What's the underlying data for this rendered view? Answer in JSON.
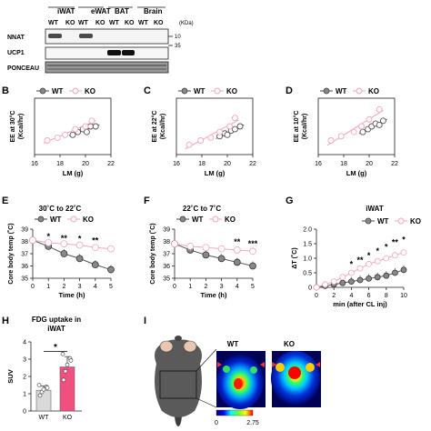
{
  "panel_a": {
    "tissue_headers": [
      "iWAT",
      "eWAT",
      "BAT",
      "Brain"
    ],
    "genotype_labels": [
      "WT",
      "KO",
      "WT",
      "KO",
      "WT",
      "KO",
      "WT",
      "KO"
    ],
    "row_labels": [
      "NNAT",
      "UCP1",
      "PONCEAU"
    ],
    "kda_label": "(KDa)",
    "markers": [
      "10",
      "35"
    ]
  },
  "panel_labels": [
    "B",
    "C",
    "D",
    "E",
    "F",
    "G",
    "H",
    "I"
  ],
  "legend": {
    "wt": "WT",
    "ko": "KO"
  },
  "colors": {
    "wt": "#888888",
    "ko": "#f2a6bf",
    "ko_bar": "#f0507f",
    "wt_bar": "#d9d9d9"
  },
  "chart_data": [
    {
      "panel": "B",
      "type": "scatter",
      "ylabel": "EE at 30°C (Kcal/hr)",
      "xlabel": "LM (g)",
      "xlim": [
        16,
        22
      ],
      "ylim": [
        0.2,
        0.4
      ],
      "xticks": [
        "16",
        "18",
        "20",
        "22"
      ],
      "series": [
        {
          "name": "WT",
          "x": [
            19.0,
            19.4,
            19.8,
            20.1,
            20.4,
            20.8
          ],
          "y": [
            0.27,
            0.28,
            0.29,
            0.28,
            0.3,
            0.3
          ]
        },
        {
          "name": "KO",
          "x": [
            17.0,
            17.8,
            18.4,
            19.2,
            20.0,
            20.5
          ],
          "y": [
            0.25,
            0.26,
            0.27,
            0.29,
            0.3,
            0.32
          ]
        }
      ]
    },
    {
      "panel": "C",
      "type": "scatter",
      "ylabel": "EE at 22°C (Kcal/hr)",
      "xlabel": "LM (g)",
      "xlim": [
        16,
        22
      ],
      "ylim": [
        0.2,
        0.6
      ],
      "xticks": [
        "16",
        "18",
        "20",
        "22"
      ],
      "series": [
        {
          "name": "WT",
          "x": [
            19.4,
            19.8,
            20.0,
            20.3,
            20.6,
            21.0
          ],
          "y": [
            0.33,
            0.35,
            0.34,
            0.37,
            0.38,
            0.4
          ]
        },
        {
          "name": "KO",
          "x": [
            17.0,
            17.9,
            18.7,
            19.4,
            20.2,
            20.6
          ],
          "y": [
            0.27,
            0.3,
            0.32,
            0.36,
            0.4,
            0.46
          ]
        }
      ]
    },
    {
      "panel": "D",
      "type": "scatter",
      "ylabel": "EE at 10°C (Kcal/hr)",
      "xlabel": "LM (g)",
      "xlim": [
        16,
        22
      ],
      "ylim": [
        0.3,
        0.7
      ],
      "xticks": [
        "16",
        "18",
        "20",
        "22"
      ],
      "series": [
        {
          "name": "WT",
          "x": [
            19.5,
            19.9,
            20.2,
            20.5,
            20.8,
            21.1
          ],
          "y": [
            0.46,
            0.48,
            0.5,
            0.52,
            0.51,
            0.54
          ]
        },
        {
          "name": "KO",
          "x": [
            17.0,
            17.8,
            18.8,
            19.4,
            20.0,
            20.8
          ],
          "y": [
            0.4,
            0.43,
            0.46,
            0.5,
            0.55,
            0.62
          ]
        }
      ]
    },
    {
      "panel": "E",
      "type": "line",
      "title": "30˚C to 22˚C",
      "ylabel": "Core body temp (˚C)",
      "xlabel": "Time (h)",
      "x": [
        0,
        1,
        2,
        3,
        4,
        5
      ],
      "ylim": [
        35,
        39
      ],
      "yticks": [
        "35",
        "36",
        "37",
        "38",
        "39"
      ],
      "series": [
        {
          "name": "WT",
          "values": [
            38.1,
            37.6,
            37.0,
            36.6,
            36.1,
            35.7
          ]
        },
        {
          "name": "KO",
          "values": [
            38.1,
            37.9,
            37.8,
            37.7,
            37.5,
            37.4
          ]
        }
      ],
      "annotations": [
        "*",
        "**",
        "*",
        "**"
      ]
    },
    {
      "panel": "F",
      "type": "line",
      "title": "22˚C to 7˚C",
      "ylabel": "Core body temp (˚C)",
      "xlabel": "Time (h)",
      "x": [
        0,
        1,
        2,
        3,
        4,
        5
      ],
      "ylim": [
        35,
        39
      ],
      "yticks": [
        "35",
        "36",
        "37",
        "38",
        "39"
      ],
      "series": [
        {
          "name": "WT",
          "values": [
            37.8,
            37.3,
            36.9,
            36.6,
            36.3,
            36.0
          ]
        },
        {
          "name": "KO",
          "values": [
            37.8,
            37.6,
            37.5,
            37.4,
            37.3,
            37.2
          ]
        }
      ],
      "annotations": [
        "**",
        "***"
      ]
    },
    {
      "panel": "G",
      "type": "line",
      "title": "iWAT",
      "ylabel": "ΔT (˚C)",
      "xlabel": "min (after CL inj)",
      "x": [
        0,
        1,
        2,
        3,
        4,
        5,
        6,
        7,
        8,
        9,
        10
      ],
      "ylim": [
        0,
        2.0
      ],
      "yticks": [
        "0",
        "0.5",
        "1.0",
        "1.5",
        "2.0"
      ],
      "xticks": [
        "0",
        "2",
        "4",
        "6",
        "8",
        "10"
      ],
      "series": [
        {
          "name": "WT",
          "values": [
            0.0,
            0.05,
            0.1,
            0.15,
            0.2,
            0.25,
            0.3,
            0.35,
            0.4,
            0.5,
            0.6
          ]
        },
        {
          "name": "KO",
          "values": [
            0.0,
            0.1,
            0.2,
            0.35,
            0.5,
            0.65,
            0.8,
            0.9,
            1.0,
            1.1,
            1.2
          ]
        }
      ],
      "annotations": [
        "*",
        "**",
        "*",
        "*",
        "*",
        "**",
        "*"
      ]
    },
    {
      "panel": "H",
      "type": "bar",
      "title": "FDG uptake in iWAT",
      "ylabel": "SUV",
      "categories": [
        "WT",
        "KO"
      ],
      "values": [
        1.2,
        2.55
      ],
      "ylim": [
        0,
        4
      ],
      "yticks": [
        "0",
        "1",
        "2",
        "3",
        "4"
      ],
      "annotations": [
        "*"
      ]
    }
  ],
  "panel_i": {
    "titles": [
      "WT",
      "KO"
    ],
    "colorbar_min": "0",
    "colorbar_max": "2.75"
  }
}
